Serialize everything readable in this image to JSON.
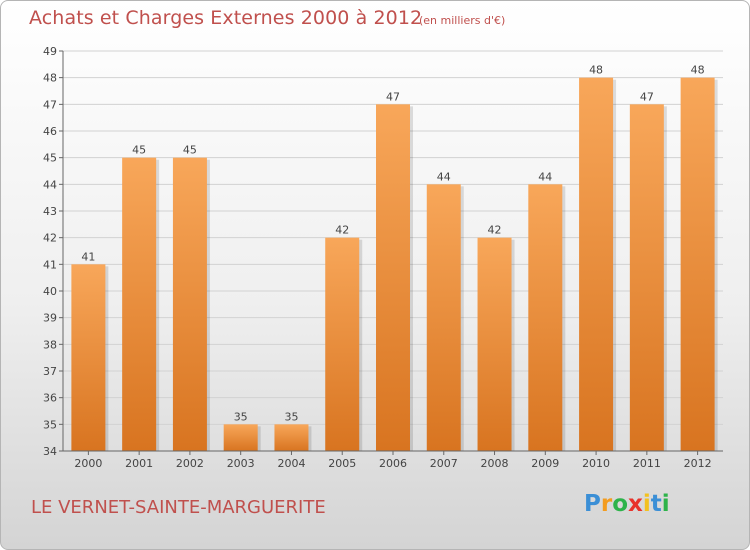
{
  "title": "Achats et Charges Externes 2000 à 2012",
  "subtitle": "(en milliers d'€)",
  "commune": "LE VERNET-SAINTE-MARGUERITE",
  "logo": {
    "letters": [
      "P",
      "r",
      "o",
      "x",
      "i",
      "t",
      "i"
    ],
    "colors": [
      "#3b8fd6",
      "#f39c1f",
      "#2db34a",
      "#e8322b",
      "#f3c11f",
      "#3b8fd6",
      "#2db34a"
    ]
  },
  "colors": {
    "bar_top": "#f8a75a",
    "bar_bottom": "#d87420",
    "title": "#c0504d"
  },
  "chart_data": {
    "type": "bar",
    "categories": [
      "2000",
      "2001",
      "2002",
      "2003",
      "2004",
      "2005",
      "2006",
      "2007",
      "2008",
      "2009",
      "2010",
      "2011",
      "2012"
    ],
    "values": [
      41,
      45,
      45,
      35,
      35,
      42,
      47,
      44,
      42,
      44,
      48,
      47,
      48
    ],
    "ylim": [
      34,
      49
    ],
    "yticks": [
      34,
      35,
      36,
      37,
      38,
      39,
      40,
      41,
      42,
      43,
      44,
      45,
      46,
      47,
      48,
      49
    ],
    "grid": true
  }
}
